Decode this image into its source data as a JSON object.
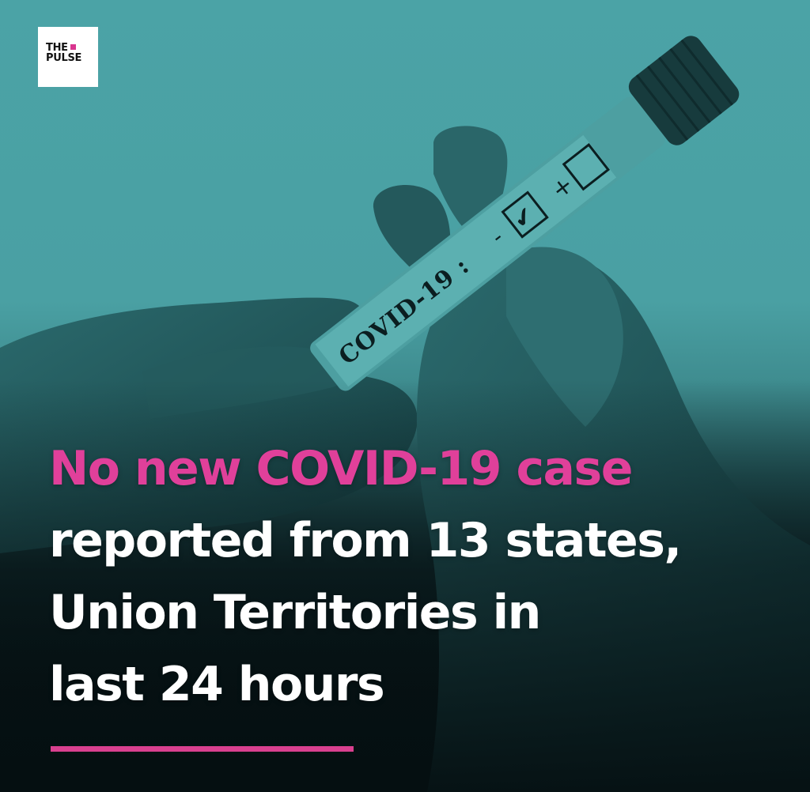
{
  "brand": {
    "line1": "THE",
    "line2": "PULSE",
    "accent_color": "#d9358f"
  },
  "tube_label": {
    "text": "COVID-19 :",
    "negative_mark": "-",
    "positive_mark": "+",
    "check_glyph": "✔"
  },
  "headline": {
    "line1": "No new COVID-19 case",
    "line2": "reported from 13 states,",
    "line3": "Union Territories in",
    "line4": "last 24 hours",
    "accent_color": "#e0409a",
    "text_color": "#ffffff"
  },
  "colors": {
    "background_top": "#4ba3a6",
    "background_bottom": "#050f11",
    "glove": "#1e5255",
    "divider": "#d9408f"
  }
}
